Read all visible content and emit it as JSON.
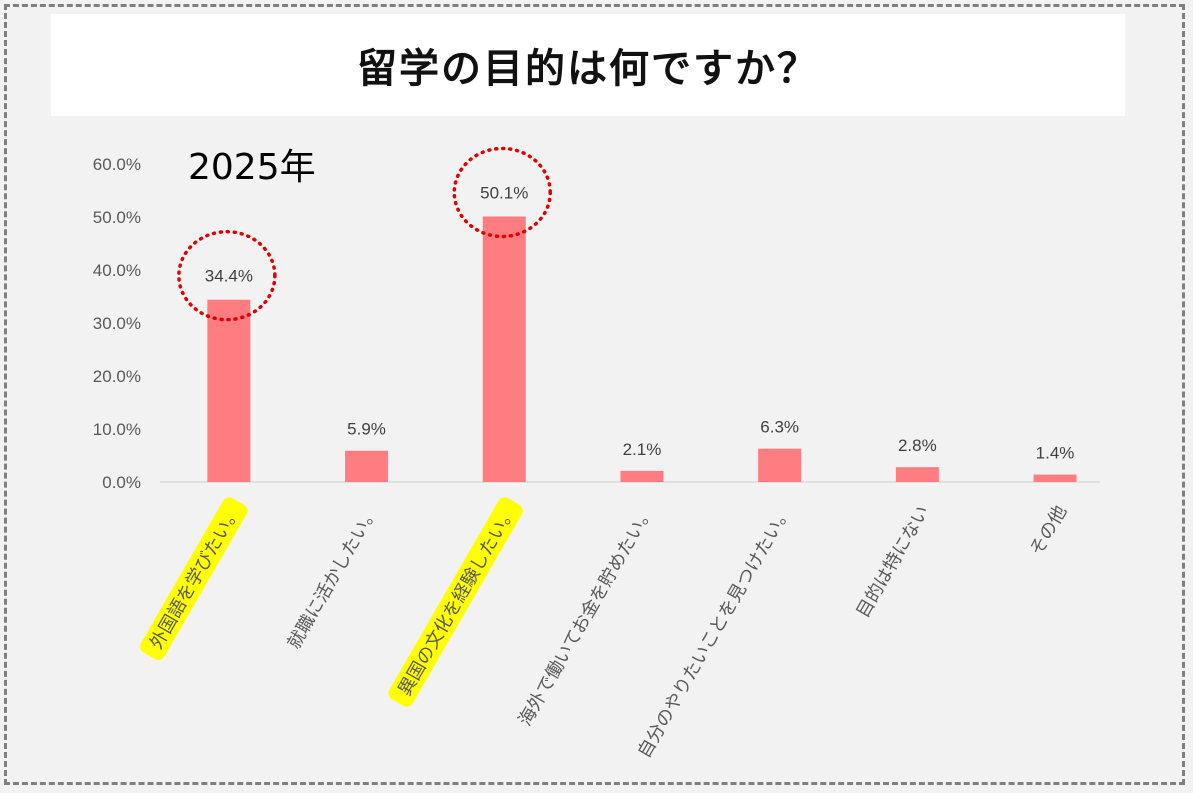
{
  "title": "留学の目的は何ですか？",
  "year_label": "2025年",
  "colors": {
    "bar": "#ff7c80",
    "highlight": "#ffff00",
    "circle": "#e00000",
    "frame": "#7f7f7f",
    "background": "#f2f2f2"
  },
  "chart_data": {
    "type": "bar",
    "categories": [
      "外国語を学びたい。",
      "就職に活かしたい。",
      "異国の文化を経験したい。",
      "海外で働いてお金を貯めたい。",
      "自分のやりたいことを見つけたい。",
      "目的は特にない",
      "その他"
    ],
    "values": [
      34.4,
      5.9,
      50.1,
      2.1,
      6.3,
      2.8,
      1.4
    ],
    "value_labels": [
      "34.4%",
      "5.9%",
      "50.1%",
      "2.1%",
      "6.3%",
      "2.8%",
      "1.4%"
    ],
    "y_ticks": [
      "0.0%",
      "10.0%",
      "20.0%",
      "30.0%",
      "40.0%",
      "50.0%",
      "60.0%"
    ],
    "ylim": [
      0,
      60
    ],
    "highlighted_categories": [
      0,
      2
    ],
    "circled_values": [
      0,
      2
    ],
    "grid": false,
    "legend": "none"
  }
}
